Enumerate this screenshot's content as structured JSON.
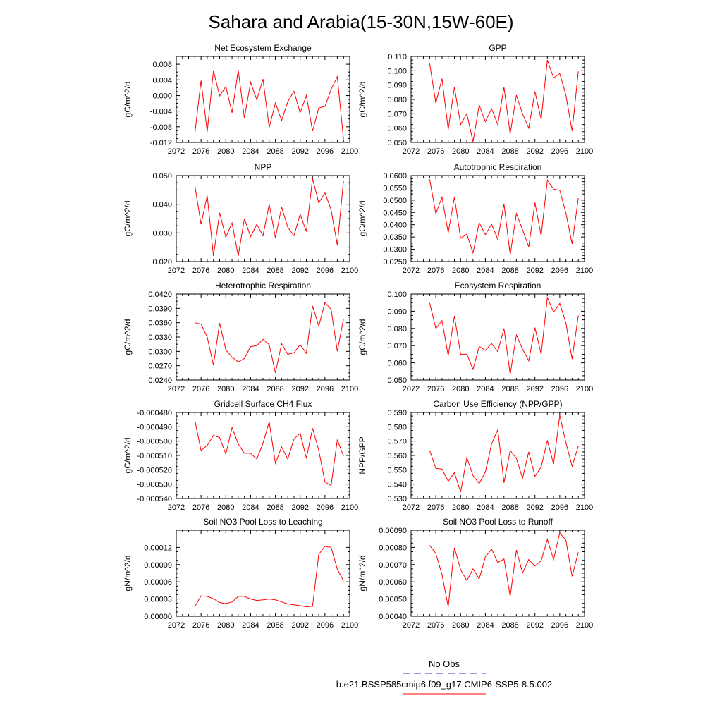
{
  "title": "Sahara and Arabia(15-30N,15W-60E)",
  "legend": {
    "obs_label": "No Obs",
    "model_label": "b.e21.BSSP585cmip6.f09_g17.CMIP6-SSP5-8.5.002",
    "obs_color": "#3333cc",
    "model_color": "#ff0000"
  },
  "chart_data": [
    {
      "type": "line",
      "title": "Net Ecosystem Exchange",
      "ylabel": "gC/m^2/d",
      "xlim": [
        2072,
        2100
      ],
      "x_ticks": [
        "2072",
        "2076",
        "2080",
        "2084",
        "2088",
        "2092",
        "2096",
        "2100"
      ],
      "ylim": [
        -0.012,
        0.01
      ],
      "y_ticks": [
        "0.008",
        "0.004",
        "0.000",
        "-0.004",
        "-0.008",
        "-0.012"
      ],
      "y_tick_values": [
        0.008,
        0.004,
        0.0,
        -0.004,
        -0.008,
        -0.012
      ],
      "x": [
        2075,
        2076,
        2077,
        2078,
        2079,
        2080,
        2081,
        2082,
        2083,
        2084,
        2085,
        2086,
        2087,
        2088,
        2089,
        2090,
        2091,
        2092,
        2093,
        2094,
        2095,
        2096,
        2097,
        2098,
        2099
      ],
      "values": [
        -0.0096,
        0.0038,
        -0.0093,
        0.0064,
        -0.0001,
        0.0023,
        -0.0044,
        0.0065,
        -0.0058,
        0.0034,
        -0.0011,
        0.0042,
        -0.0082,
        -0.0019,
        -0.0064,
        -0.0016,
        0.0011,
        -0.0044,
        0.0,
        -0.0091,
        -0.0032,
        -0.0028,
        0.0016,
        0.0048,
        -0.0112
      ]
    },
    {
      "type": "line",
      "title": "GPP",
      "ylabel": "gC/m^2/d",
      "xlim": [
        2072,
        2100
      ],
      "x_ticks": [
        "2072",
        "2076",
        "2080",
        "2084",
        "2088",
        "2092",
        "2096",
        "2100"
      ],
      "ylim": [
        0.05,
        0.11
      ],
      "y_ticks": [
        "0.110",
        "0.100",
        "0.090",
        "0.080",
        "0.070",
        "0.060",
        "0.050"
      ],
      "y_tick_values": [
        0.11,
        0.1,
        0.09,
        0.08,
        0.07,
        0.06,
        0.05
      ],
      "x": [
        2075,
        2076,
        2077,
        2078,
        2079,
        2080,
        2081,
        2082,
        2083,
        2084,
        2085,
        2086,
        2087,
        2088,
        2089,
        2090,
        2091,
        2092,
        2093,
        2094,
        2095,
        2096,
        2097,
        2098,
        2099
      ],
      "values": [
        0.105,
        0.0775,
        0.0945,
        0.059,
        0.0885,
        0.0625,
        0.07,
        0.0505,
        0.076,
        0.0645,
        0.0735,
        0.0625,
        0.0885,
        0.056,
        0.083,
        0.07,
        0.06,
        0.0855,
        0.066,
        0.1075,
        0.095,
        0.098,
        0.083,
        0.058,
        0.0995
      ]
    },
    {
      "type": "line",
      "title": "NPP",
      "ylabel": "gC/m^2/d",
      "xlim": [
        2072,
        2100
      ],
      "x_ticks": [
        "2072",
        "2076",
        "2080",
        "2084",
        "2088",
        "2092",
        "2096",
        "2100"
      ],
      "ylim": [
        0.02,
        0.05
      ],
      "y_ticks": [
        "0.050",
        "0.040",
        "0.030",
        "0.020"
      ],
      "y_tick_values": [
        0.05,
        0.04,
        0.03,
        0.02
      ],
      "x": [
        2075,
        2076,
        2077,
        2078,
        2079,
        2080,
        2081,
        2082,
        2083,
        2084,
        2085,
        2086,
        2087,
        2088,
        2089,
        2090,
        2091,
        2092,
        2093,
        2094,
        2095,
        2096,
        2097,
        2098,
        2099
      ],
      "values": [
        0.0465,
        0.033,
        0.043,
        0.022,
        0.037,
        0.0285,
        0.0335,
        0.022,
        0.035,
        0.0287,
        0.033,
        0.029,
        0.04,
        0.0283,
        0.039,
        0.032,
        0.029,
        0.0365,
        0.0305,
        0.049,
        0.0405,
        0.044,
        0.038,
        0.0258,
        0.0483
      ]
    },
    {
      "type": "line",
      "title": "Autotrophic Respiration",
      "ylabel": "gC/m^2/d",
      "xlim": [
        2072,
        2100
      ],
      "x_ticks": [
        "2072",
        "2076",
        "2080",
        "2084",
        "2088",
        "2092",
        "2096",
        "2100"
      ],
      "ylim": [
        0.025,
        0.06
      ],
      "y_ticks": [
        "0.0600",
        "0.0550",
        "0.0500",
        "0.0450",
        "0.0400",
        "0.0350",
        "0.0300",
        "0.0250"
      ],
      "y_tick_values": [
        0.06,
        0.055,
        0.05,
        0.045,
        0.04,
        0.035,
        0.03,
        0.025
      ],
      "x": [
        2075,
        2076,
        2077,
        2078,
        2079,
        2080,
        2081,
        2082,
        2083,
        2084,
        2085,
        2086,
        2087,
        2088,
        2089,
        2090,
        2091,
        2092,
        2093,
        2094,
        2095,
        2096,
        2097,
        2098,
        2099
      ],
      "values": [
        0.0585,
        0.0445,
        0.0512,
        0.0368,
        0.0512,
        0.0345,
        0.0362,
        0.0285,
        0.0408,
        0.036,
        0.0402,
        0.034,
        0.0485,
        0.0278,
        0.0445,
        0.038,
        0.031,
        0.049,
        0.0355,
        0.0582,
        0.0545,
        0.054,
        0.0448,
        0.0322,
        0.0508
      ]
    },
    {
      "type": "line",
      "title": "Heterotrophic Respiration",
      "ylabel": "gC/m^2/d",
      "xlim": [
        2072,
        2100
      ],
      "x_ticks": [
        "2072",
        "2076",
        "2080",
        "2084",
        "2088",
        "2092",
        "2096",
        "2100"
      ],
      "ylim": [
        0.024,
        0.042
      ],
      "y_ticks": [
        "0.0420",
        "0.0390",
        "0.0360",
        "0.0330",
        "0.0300",
        "0.0270",
        "0.0240"
      ],
      "y_tick_values": [
        0.042,
        0.039,
        0.036,
        0.033,
        0.03,
        0.027,
        0.024
      ],
      "x": [
        2075,
        2076,
        2077,
        2078,
        2079,
        2080,
        2081,
        2082,
        2083,
        2084,
        2085,
        2086,
        2087,
        2088,
        2089,
        2090,
        2091,
        2092,
        2093,
        2094,
        2095,
        2096,
        2097,
        2098,
        2099
      ],
      "values": [
        0.036,
        0.0357,
        0.033,
        0.0271,
        0.0359,
        0.0303,
        0.0288,
        0.0278,
        0.0285,
        0.031,
        0.0312,
        0.0325,
        0.0314,
        0.0255,
        0.0316,
        0.0294,
        0.0297,
        0.0314,
        0.0296,
        0.0395,
        0.0353,
        0.0402,
        0.0388,
        0.03,
        0.0368
      ]
    },
    {
      "type": "line",
      "title": "Ecosystem Respiration",
      "ylabel": "gC/m^2/d",
      "xlim": [
        2072,
        2100
      ],
      "x_ticks": [
        "2072",
        "2076",
        "2080",
        "2084",
        "2088",
        "2092",
        "2096",
        "2100"
      ],
      "ylim": [
        0.05,
        0.1
      ],
      "y_ticks": [
        "0.100",
        "0.090",
        "0.080",
        "0.070",
        "0.060",
        "0.050"
      ],
      "y_tick_values": [
        0.1,
        0.09,
        0.08,
        0.07,
        0.06,
        0.05
      ],
      "x": [
        2075,
        2076,
        2077,
        2078,
        2079,
        2080,
        2081,
        2082,
        2083,
        2084,
        2085,
        2086,
        2087,
        2088,
        2089,
        2090,
        2091,
        2092,
        2093,
        2094,
        2095,
        2096,
        2097,
        2098,
        2099
      ],
      "values": [
        0.0948,
        0.08,
        0.0845,
        0.0642,
        0.0872,
        0.065,
        0.065,
        0.0562,
        0.0695,
        0.0672,
        0.0712,
        0.0665,
        0.08,
        0.0533,
        0.0762,
        0.068,
        0.0612,
        0.0805,
        0.065,
        0.098,
        0.0895,
        0.0945,
        0.0832,
        0.0622,
        0.0875
      ]
    },
    {
      "type": "line",
      "title": "Gridcell Surface CH4 Flux",
      "ylabel": "gC/m^2/d",
      "xlim": [
        2072,
        2100
      ],
      "x_ticks": [
        "2072",
        "2076",
        "2080",
        "2084",
        "2088",
        "2092",
        "2096",
        "2100"
      ],
      "ylim": [
        -0.00054,
        -0.00048
      ],
      "y_ticks": [
        "-0.000480",
        "-0.000490",
        "-0.000500",
        "-0.000510",
        "-0.000520",
        "-0.000530",
        "-0.000540"
      ],
      "y_tick_values": [
        -0.00048,
        -0.00049,
        -0.0005,
        -0.00051,
        -0.00052,
        -0.00053,
        -0.00054
      ],
      "x": [
        2075,
        2076,
        2077,
        2078,
        2079,
        2080,
        2081,
        2082,
        2083,
        2084,
        2085,
        2086,
        2087,
        2088,
        2089,
        2090,
        2091,
        2092,
        2093,
        2094,
        2095,
        2096,
        2097,
        2098,
        2099
      ],
      "values": [
        -0.0004855,
        -0.0005065,
        -0.000503,
        -0.000496,
        -0.0004975,
        -0.000509,
        -0.0004905,
        -0.000502,
        -0.0005085,
        -0.0005085,
        -0.0005125,
        -0.0005015,
        -0.0004865,
        -0.0005155,
        -0.000504,
        -0.0005125,
        -0.0004985,
        -0.0004945,
        -0.000512,
        -0.000491,
        -0.0005065,
        -0.0005285,
        -0.000531,
        -0.000499,
        -0.0005105
      ]
    },
    {
      "type": "line",
      "title": "Carbon Use Efficiency (NPP/GPP)",
      "ylabel": "NPP/GPP",
      "xlim": [
        2072,
        2100
      ],
      "x_ticks": [
        "2072",
        "2076",
        "2080",
        "2084",
        "2088",
        "2092",
        "2096",
        "2100"
      ],
      "ylim": [
        0.53,
        0.59
      ],
      "y_ticks": [
        "0.590",
        "0.580",
        "0.570",
        "0.560",
        "0.550",
        "0.540",
        "0.530"
      ],
      "y_tick_values": [
        0.59,
        0.58,
        0.57,
        0.56,
        0.55,
        0.54,
        0.53
      ],
      "x": [
        2075,
        2076,
        2077,
        2078,
        2079,
        2080,
        2081,
        2082,
        2083,
        2084,
        2085,
        2086,
        2087,
        2088,
        2089,
        2090,
        2091,
        2092,
        2093,
        2094,
        2095,
        2096,
        2097,
        2098,
        2099
      ],
      "values": [
        0.5635,
        0.551,
        0.5505,
        0.542,
        0.548,
        0.5345,
        0.5585,
        0.546,
        0.5405,
        0.5485,
        0.568,
        0.578,
        0.541,
        0.5635,
        0.558,
        0.544,
        0.5625,
        0.5455,
        0.552,
        0.5705,
        0.554,
        0.588,
        0.569,
        0.5525,
        0.5665
      ]
    },
    {
      "type": "line",
      "title": "Soil NO3 Pool Loss to Leaching",
      "ylabel": "gN/m^2/d",
      "xlim": [
        2072,
        2100
      ],
      "x_ticks": [
        "2072",
        "2076",
        "2080",
        "2084",
        "2088",
        "2092",
        "2096",
        "2100"
      ],
      "ylim": [
        0.0,
        0.00015
      ],
      "y_ticks": [
        "0.00012",
        "0.00009",
        "0.00006",
        "0.00003",
        "0.00000"
      ],
      "y_tick_values": [
        0.00012,
        9e-05,
        6e-05,
        3e-05,
        0.0
      ],
      "x": [
        2075,
        2076,
        2077,
        2078,
        2079,
        2080,
        2081,
        2082,
        2083,
        2084,
        2085,
        2086,
        2087,
        2088,
        2089,
        2090,
        2091,
        2092,
        2093,
        2094,
        2095,
        2096,
        2097,
        2098,
        2099
      ],
      "values": [
        1.7e-05,
        3.55e-05,
        3.45e-05,
        3.05e-05,
        2.4e-05,
        2.2e-05,
        2.5e-05,
        3.45e-05,
        3.45e-05,
        3e-05,
        2.75e-05,
        2.85e-05,
        3e-05,
        2.85e-05,
        2.5e-05,
        2.15e-05,
        2e-05,
        1.85e-05,
        1.65e-05,
        1.75e-05,
        0.000108,
        0.000122,
        0.00012,
        8.2e-05,
        6.2e-05
      ]
    },
    {
      "type": "line",
      "title": "Soil NO3 Pool Loss to Runoff",
      "ylabel": "gN/m^2/d",
      "xlim": [
        2072,
        2100
      ],
      "x_ticks": [
        "2072",
        "2076",
        "2080",
        "2084",
        "2088",
        "2092",
        "2096",
        "2100"
      ],
      "ylim": [
        0.0004,
        0.0009
      ],
      "y_ticks": [
        "0.00090",
        "0.00080",
        "0.00070",
        "0.00060",
        "0.00050",
        "0.00040"
      ],
      "y_tick_values": [
        0.0009,
        0.0008,
        0.0007,
        0.0006,
        0.0005,
        0.0004
      ],
      "x": [
        2075,
        2076,
        2077,
        2078,
        2079,
        2080,
        2081,
        2082,
        2083,
        2084,
        2085,
        2086,
        2087,
        2088,
        2089,
        2090,
        2091,
        2092,
        2093,
        2094,
        2095,
        2096,
        2097,
        2098,
        2099
      ],
      "values": [
        0.000812,
        0.000765,
        0.000642,
        0.000455,
        0.000798,
        0.00067,
        0.000607,
        0.000675,
        0.000617,
        0.000745,
        0.00079,
        0.000712,
        0.000733,
        0.000515,
        0.000785,
        0.000652,
        0.00073,
        0.000692,
        0.000722,
        0.000847,
        0.00073,
        0.000885,
        0.000842,
        0.000632,
        0.000772
      ]
    }
  ]
}
